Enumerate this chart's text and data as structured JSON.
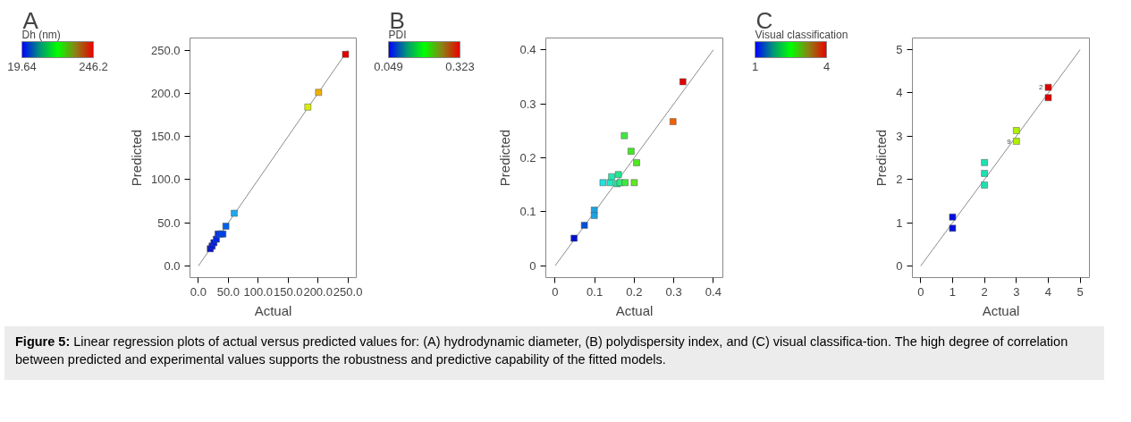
{
  "chart_data": [
    {
      "type": "scatter",
      "title": "A",
      "xlabel": "Actual",
      "ylabel": "Predicted",
      "clabel": "Dh (nm)",
      "clim": [
        19.64,
        246.2
      ],
      "cticks": [
        19.64,
        246.2
      ],
      "xlim": [
        -14,
        264
      ],
      "ylim": [
        -13.5,
        264
      ],
      "xticks": [
        {
          "value": 0,
          "label": "0.0"
        },
        {
          "value": 50,
          "label": "50.0"
        },
        {
          "value": 100,
          "label": "100.0"
        },
        {
          "value": 150,
          "label": "150.0"
        },
        {
          "value": 200,
          "label": "200.0"
        },
        {
          "value": 250,
          "label": "250.0"
        }
      ],
      "yticks": [
        {
          "value": 0,
          "label": "0.0"
        },
        {
          "value": 50,
          "label": "50.0"
        },
        {
          "value": 100,
          "label": "100.0"
        },
        {
          "value": 150,
          "label": "150.0"
        },
        {
          "value": 200,
          "label": "200.0"
        },
        {
          "value": 250,
          "label": "250.0"
        }
      ],
      "series": [
        {
          "type": "line",
          "marker": "none",
          "color": "#8c8c8c",
          "x": [
            0,
            250
          ],
          "values": [
            0,
            250
          ]
        },
        {
          "type": "scatter",
          "marker": "square",
          "x": [
            20,
            23,
            26,
            30,
            33,
            37,
            41,
            46,
            60,
            183,
            201,
            246
          ],
          "values": [
            20,
            23,
            27,
            31,
            37,
            37,
            37,
            46,
            61,
            184,
            201,
            245
          ],
          "colors": [
            "#0010d0",
            "#0018d8",
            "#0020e0",
            "#0028e0",
            "#0030e8",
            "#0038e8",
            "#0040e8",
            "#0060e8",
            "#20a8e8",
            "#d8f000",
            "#f0b000",
            "#e00000"
          ]
        }
      ]
    },
    {
      "type": "scatter",
      "title": "B",
      "xlabel": "Actual",
      "ylabel": "Predicted",
      "clabel": "PDI",
      "clim": [
        0.049,
        0.323
      ],
      "cticks": [
        0.049,
        0.323
      ],
      "xlim": [
        -0.0235,
        0.424
      ],
      "ylim": [
        -0.022,
        0.422
      ],
      "xticks": [
        0,
        0.1,
        0.2,
        0.3,
        0.4
      ],
      "yticks": [
        0,
        0.1,
        0.2,
        0.3,
        0.4
      ],
      "series": [
        {
          "type": "line",
          "marker": "none",
          "color": "#8c8c8c",
          "x": [
            0,
            0.4
          ],
          "values": [
            0,
            0.4
          ]
        },
        {
          "type": "scatter",
          "marker": "square",
          "x": [
            0.048,
            0.074,
            0.099,
            0.099,
            0.121,
            0.139,
            0.143,
            0.157,
            0.16,
            0.164,
            0.177,
            0.175,
            0.192,
            0.206,
            0.2,
            0.298,
            0.323
          ],
          "values": [
            0.051,
            0.075,
            0.103,
            0.093,
            0.154,
            0.154,
            0.165,
            0.152,
            0.169,
            0.154,
            0.154,
            0.241,
            0.212,
            0.191,
            0.154,
            0.267,
            0.341
          ],
          "colors": [
            "#0010d0",
            "#0050d8",
            "#20a0e0",
            "#20a0e0",
            "#20e0e0",
            "#20e8c0",
            "#20e8b0",
            "#20e8a0",
            "#20e890",
            "#30e880",
            "#40e840",
            "#40e840",
            "#40e820",
            "#50e820",
            "#60e820",
            "#f06000",
            "#e00000"
          ]
        }
      ]
    },
    {
      "type": "scatter",
      "title": "C",
      "xlabel": "Actual",
      "ylabel": "Predicted",
      "clabel": "Visual classification",
      "clim": [
        1,
        4
      ],
      "cticks": [
        1,
        4
      ],
      "xlim": [
        -0.26,
        5.29
      ],
      "ylim": [
        -0.27,
        5.27
      ],
      "xticks": [
        0,
        1,
        2,
        3,
        4,
        5
      ],
      "yticks": [
        0,
        1,
        2,
        3,
        4,
        5
      ],
      "annotations": [
        {
          "text": "2",
          "x": 4,
          "y": 4.13
        },
        {
          "text": "9",
          "x": 3,
          "y": 2.88
        }
      ],
      "series": [
        {
          "type": "line",
          "marker": "none",
          "color": "#8c8c8c",
          "x": [
            0,
            5
          ],
          "values": [
            0,
            5
          ]
        },
        {
          "type": "scatter",
          "marker": "square",
          "x": [
            1,
            1,
            2,
            2,
            2,
            3,
            3,
            4,
            4
          ],
          "values": [
            1.13,
            0.87,
            2.39,
            2.14,
            1.87,
            3.13,
            2.88,
            4.13,
            3.89
          ],
          "colors": [
            "#0010e0",
            "#0010e0",
            "#20e0b0",
            "#20e0b0",
            "#20e0b0",
            "#b0f000",
            "#b0f000",
            "#e00000",
            "#e00000"
          ]
        }
      ]
    },
    {
      "type": "other",
      "annotations": [
        "Figure 5:",
        "Linear regression plots of actual versus predicted values for: (A) hydrodynamic diameter, (B) polydispersity index, and (C) visual classifica-tion. The high degree of correlation between predicted and experimental values supports the robustness and predictive capability of the fitted models."
      ]
    }
  ]
}
